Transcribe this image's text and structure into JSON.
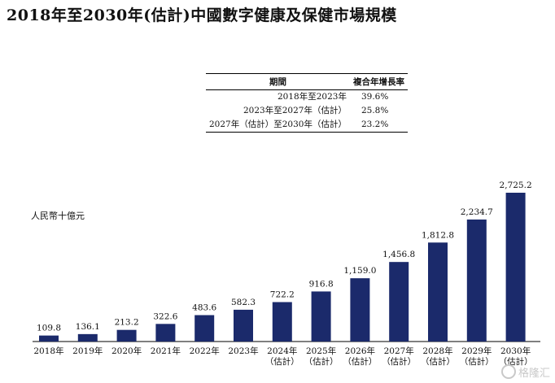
{
  "title": "2018年至2030年(估計)中國數字健康及保健市場規模",
  "cagr_table": {
    "header": {
      "period": "期間",
      "rate": "複合年增長率"
    },
    "rows": [
      {
        "period": "2018年至2023年",
        "rate": "39.6%"
      },
      {
        "period": "2023年至2027年（估計）",
        "rate": "25.8%"
      },
      {
        "period": "2027年（估計）至2030年（估計）",
        "rate": "23.2%"
      }
    ]
  },
  "watermark": "格隆汇",
  "chart_data": {
    "type": "bar",
    "ylabel": "人民幣十億元",
    "categories": [
      "2018年",
      "2019年",
      "2020年",
      "2021年",
      "2022年",
      "2023年",
      "2024年\n（估計）",
      "2025年\n（估計）",
      "2026年\n（估計）",
      "2027年\n（估計）",
      "2028年\n（估計）",
      "2029年\n（估計）",
      "2030年\n（估計）"
    ],
    "values": [
      109.8,
      136.1,
      213.2,
      322.6,
      483.6,
      582.3,
      722.2,
      916.8,
      1159.0,
      1456.8,
      1812.8,
      2234.7,
      2725.2
    ],
    "value_labels": [
      "109.8",
      "136.1",
      "213.2",
      "322.6",
      "483.6",
      "582.3",
      "722.2",
      "916.8",
      "1,159.0",
      "1,456.8",
      "1,812.8",
      "2,234.7",
      "2,725.2"
    ],
    "ylim": [
      0,
      2725.2
    ],
    "color": "#1b2a6b",
    "grid": false
  }
}
